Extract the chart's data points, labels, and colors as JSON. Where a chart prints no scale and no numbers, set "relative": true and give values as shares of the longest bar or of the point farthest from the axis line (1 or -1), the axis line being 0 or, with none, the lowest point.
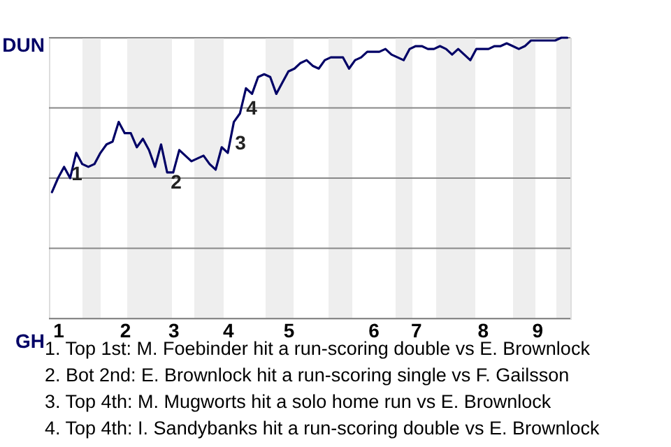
{
  "chart_data": {
    "type": "line",
    "relative": true,
    "grid": "y",
    "categories": [
      null,
      "1",
      null,
      null,
      null,
      null,
      null,
      null,
      null,
      null,
      null,
      null,
      "2",
      null,
      null,
      null,
      null,
      null,
      null,
      null,
      "3",
      null,
      null,
      null,
      null,
      null,
      null,
      null,
      null,
      "4",
      null,
      null,
      null,
      null,
      null,
      null,
      null,
      null,
      null,
      "5",
      null,
      null,
      null,
      null,
      null,
      null,
      null,
      null,
      null,
      null,
      null,
      null,
      null,
      "6",
      null,
      null,
      null,
      null,
      null,
      null,
      "7",
      null,
      null,
      null,
      null,
      null,
      null,
      null,
      null,
      null,
      null,
      "8",
      null,
      null,
      null,
      null,
      null,
      null,
      null,
      null,
      "9",
      null,
      null,
      null,
      null,
      null
    ],
    "series": [
      {
        "color": "#000066",
        "values": [
          0.45,
          0.5,
          0.54,
          0.5,
          0.59,
          0.55,
          0.54,
          0.55,
          0.59,
          0.62,
          0.63,
          0.7,
          0.66,
          0.66,
          0.61,
          0.64,
          0.6,
          0.54,
          0.62,
          0.52,
          0.52,
          0.6,
          0.58,
          0.56,
          0.57,
          0.58,
          0.55,
          0.53,
          0.61,
          0.59,
          0.7,
          0.73,
          0.82,
          0.8,
          0.86,
          0.87,
          0.86,
          0.8,
          0.84,
          0.88,
          0.89,
          0.91,
          0.92,
          0.9,
          0.89,
          0.92,
          0.93,
          0.93,
          0.93,
          0.89,
          0.92,
          0.93,
          0.95,
          0.95,
          0.95,
          0.96,
          0.94,
          0.93,
          0.92,
          0.96,
          0.97,
          0.97,
          0.96,
          0.96,
          0.97,
          0.96,
          0.94,
          0.96,
          0.94,
          0.92,
          0.96,
          0.96,
          0.96,
          0.97,
          0.97,
          0.98,
          0.97,
          0.96,
          0.97,
          0.99,
          0.99,
          0.99,
          0.99,
          0.99,
          1.0,
          1.0
        ]
      }
    ],
    "annotations": [
      "DUN",
      "GH",
      "1",
      "2",
      "3",
      "4",
      "1. Top 1st: M. Foebinder hit a run-scoring double vs E. Brownlock",
      "2. Bot 2nd: E. Brownlock hit a run-scoring single vs F. Gailsson",
      "3. Top 4th: M. Mugworts hit a solo home run vs E. Brownlock",
      "4. Top 4th: I. Sandybanks hit a run-scoring double vs E. Brownlock"
    ]
  }
}
